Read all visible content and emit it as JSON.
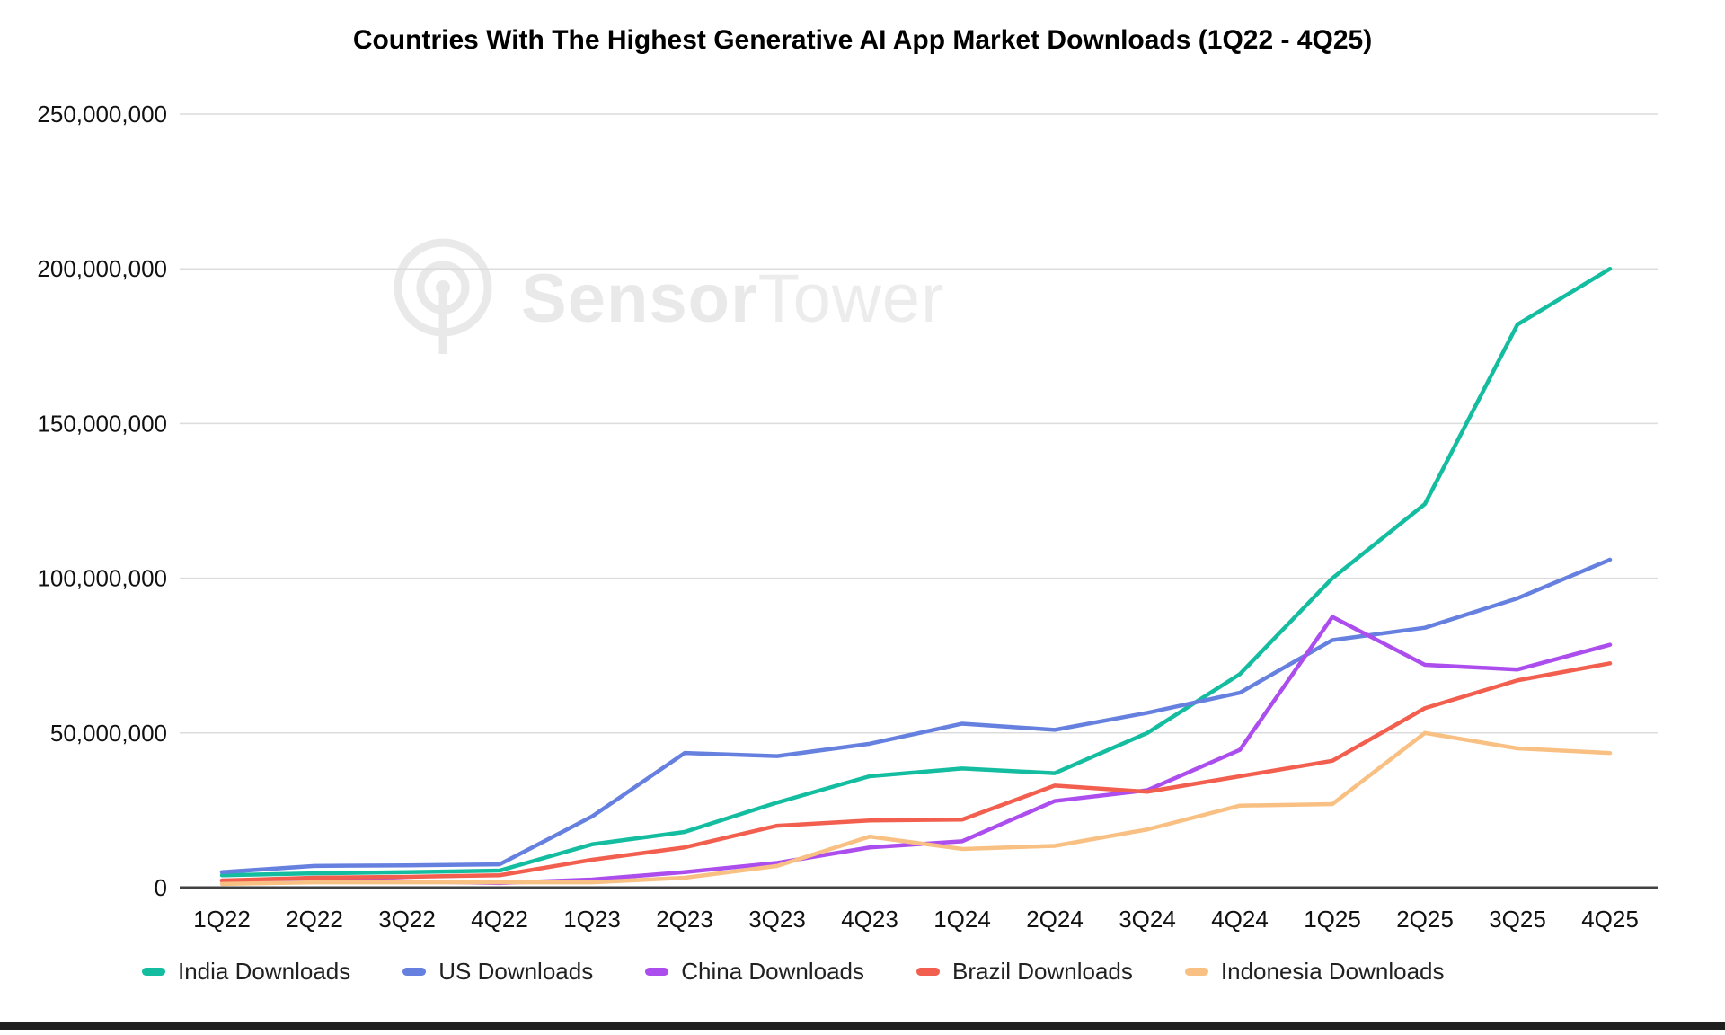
{
  "title": "Countries With The Highest Generative AI App Market Downloads (1Q22 - 4Q25)",
  "watermark": {
    "brand_bold": "Sensor",
    "brand_light": "Tower"
  },
  "chart_data": {
    "type": "line",
    "title": "Countries With The Highest Generative AI App Market Downloads (1Q22 - 4Q25)",
    "xlabel": "",
    "ylabel": "",
    "ylim": [
      0,
      250000000
    ],
    "grid": "horizontal",
    "legend_position": "bottom",
    "categories": [
      "1Q22",
      "2Q22",
      "3Q22",
      "4Q22",
      "1Q23",
      "2Q23",
      "3Q23",
      "4Q23",
      "1Q24",
      "2Q24",
      "3Q24",
      "4Q24",
      "1Q25",
      "2Q25",
      "3Q25",
      "4Q25"
    ],
    "y_ticks": [
      {
        "value": 0,
        "label": "0"
      },
      {
        "value": 50000000,
        "label": "50,000,000"
      },
      {
        "value": 100000000,
        "label": "100,000,000"
      },
      {
        "value": 150000000,
        "label": "150,000,000"
      },
      {
        "value": 200000000,
        "label": "200,000,000"
      },
      {
        "value": 250000000,
        "label": "250,000,000"
      }
    ],
    "series": [
      {
        "name": "India Downloads",
        "color": "#14bda0",
        "values": [
          4000000,
          4600000,
          5000000,
          5500000,
          14000000,
          18000000,
          27500000,
          36000000,
          38500000,
          37000000,
          50000000,
          69000000,
          100000000,
          124000000,
          182000000,
          200000000
        ]
      },
      {
        "name": "US Downloads",
        "color": "#6680e0",
        "values": [
          5000000,
          7000000,
          7200000,
          7500000,
          23000000,
          43500000,
          42500000,
          46500000,
          53000000,
          51000000,
          56500000,
          63000000,
          80000000,
          84000000,
          93500000,
          106000000
        ]
      },
      {
        "name": "China Downloads",
        "color": "#ac4dee",
        "values": [
          2300000,
          2800000,
          2000000,
          1500000,
          2600000,
          5000000,
          8000000,
          13000000,
          15000000,
          28000000,
          31500000,
          44500000,
          87500000,
          72000000,
          70500000,
          78500000
        ]
      },
      {
        "name": "Brazil Downloads",
        "color": "#f25f4f",
        "values": [
          2300000,
          3200000,
          3500000,
          4000000,
          9000000,
          13000000,
          20000000,
          21700000,
          22000000,
          33000000,
          31000000,
          36000000,
          41000000,
          58000000,
          67000000,
          72500000
        ]
      },
      {
        "name": "Indonesia Downloads",
        "color": "#f9c083",
        "values": [
          1200000,
          1700000,
          1700000,
          1700000,
          1700000,
          3200000,
          7000000,
          16500000,
          12500000,
          13500000,
          18800000,
          26500000,
          27000000,
          50000000,
          45000000,
          43500000
        ]
      }
    ]
  }
}
